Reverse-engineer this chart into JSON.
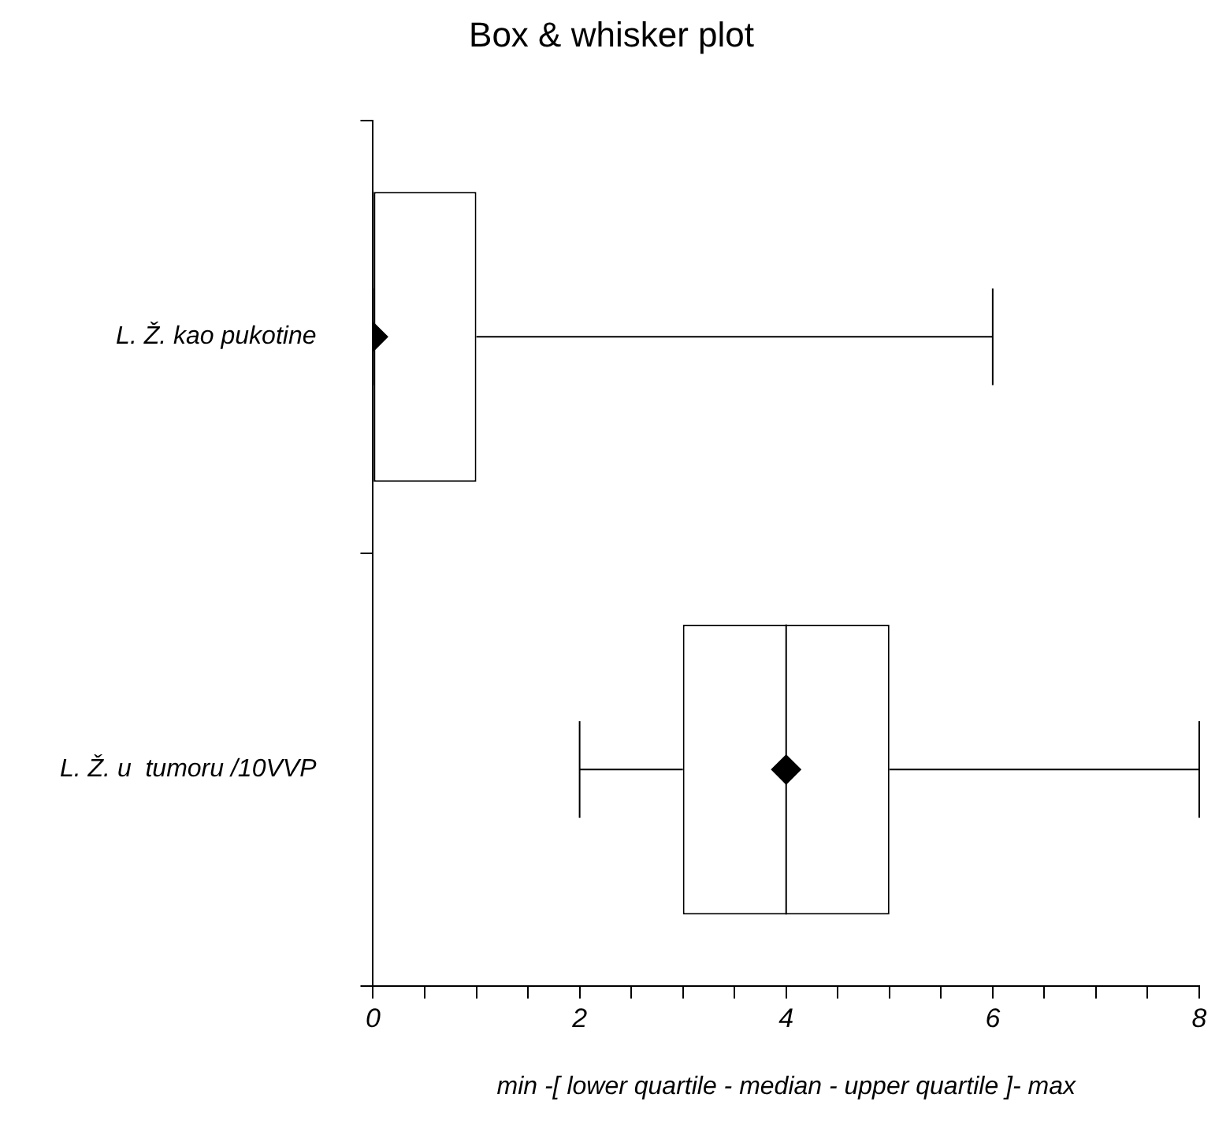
{
  "chart_data": {
    "type": "box",
    "orientation": "horizontal",
    "title": "Box & whisker plot",
    "xlabel": "min -[ lower quartile - median - upper quartile ]- max",
    "categories": [
      "L. Ž. kao pukotine",
      "L. Ž. u  tumoru /10VVP"
    ],
    "boxes": [
      {
        "low": 0,
        "q1": 0,
        "median": 0,
        "q3": 1,
        "high": 6,
        "mean": 0
      },
      {
        "low": 2,
        "q1": 3,
        "median": 4,
        "q3": 5,
        "high": 8,
        "mean": 4
      }
    ],
    "xlim": [
      0,
      8
    ],
    "xticks": [
      0,
      {
        "value": 0.5,
        "label": null
      },
      {
        "value": 1,
        "label": null
      },
      {
        "value": 1.5,
        "label": null
      },
      2,
      {
        "value": 2.5,
        "label": null
      },
      {
        "value": 3,
        "label": null
      },
      {
        "value": 3.5,
        "label": null
      },
      4,
      {
        "value": 4.5,
        "label": null
      },
      {
        "value": 5,
        "label": null
      },
      {
        "value": 5.5,
        "label": null
      },
      6,
      {
        "value": 6.5,
        "label": null
      },
      {
        "value": 7,
        "label": null
      },
      {
        "value": 7.5,
        "label": null
      },
      8
    ],
    "grid": false,
    "legend": false,
    "marker": "diamond"
  }
}
